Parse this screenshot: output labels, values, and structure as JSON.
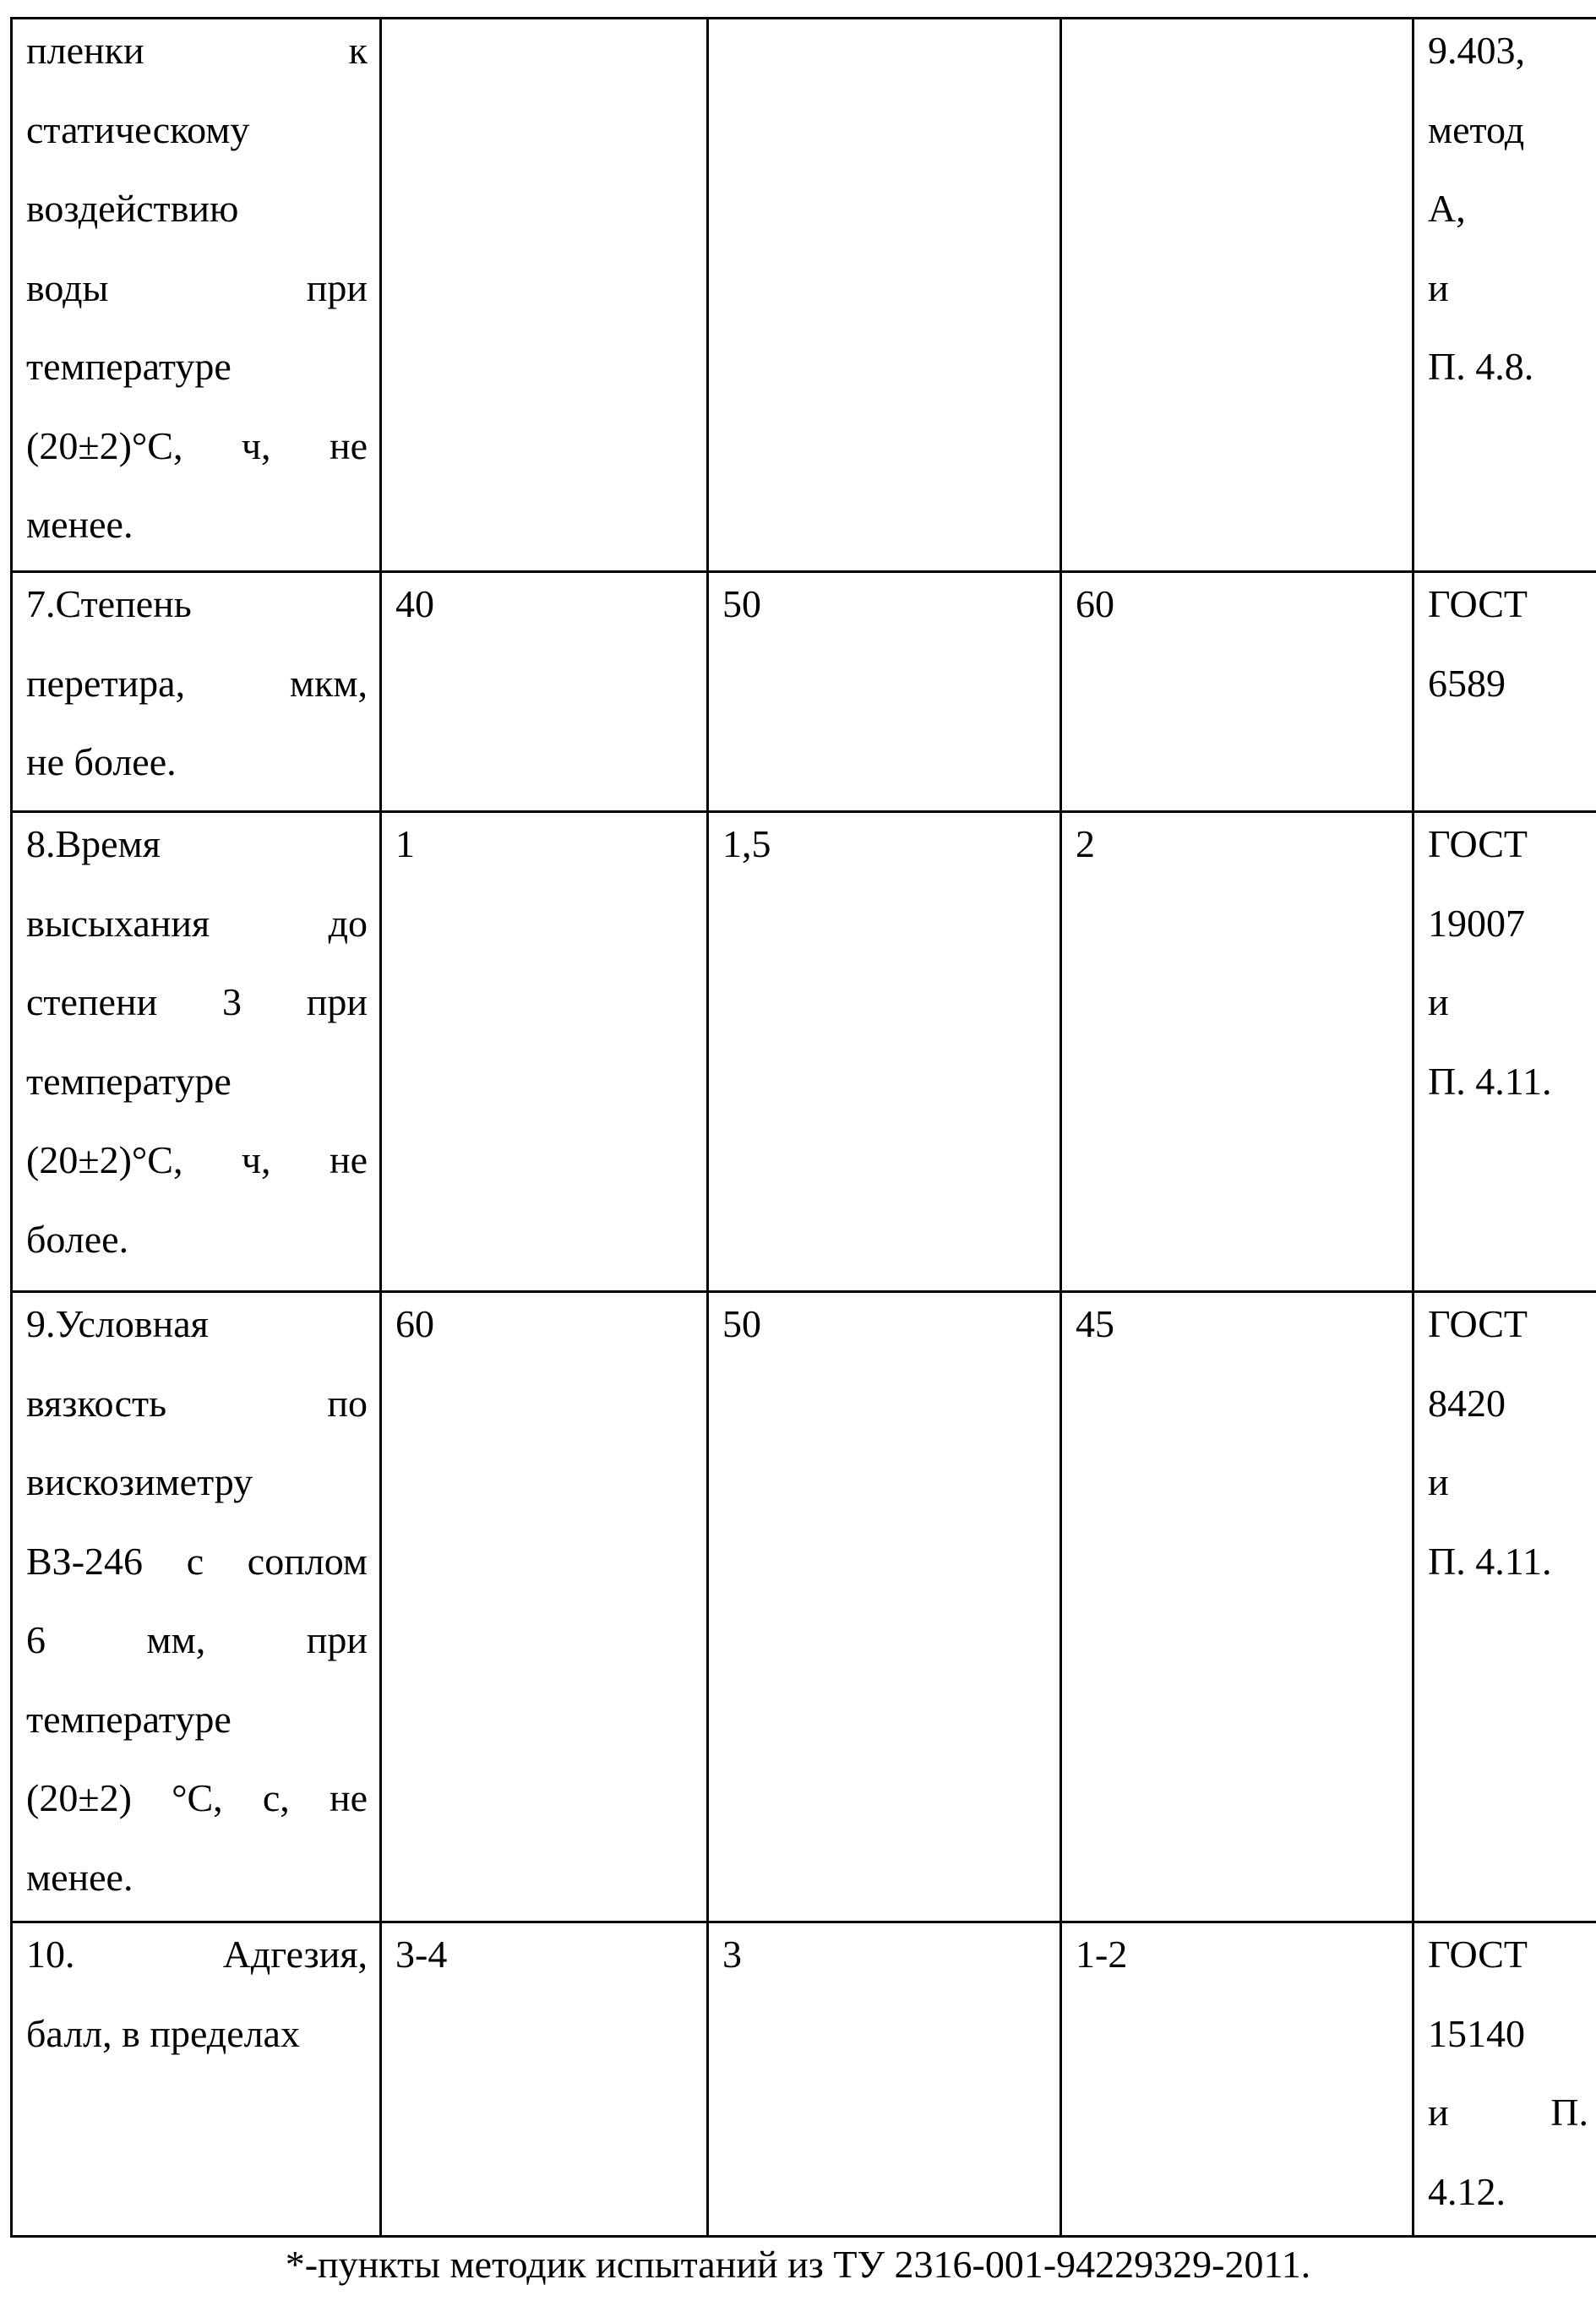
{
  "table": {
    "rows": [
      {
        "cells": [
          {
            "lines": [
              {
                "t": "пленки к",
                "j": true
              },
              {
                "t": "статическому",
                "j": false
              },
              {
                "t": "воздействию",
                "j": false
              },
              {
                "t": "воды при",
                "j": true
              },
              {
                "t": "температуре",
                "j": false
              },
              {
                "t": "(20±2)°С, ч, не",
                "j": true
              },
              {
                "t": "менее.",
                "j": false
              }
            ]
          },
          {
            "lines": []
          },
          {
            "lines": []
          },
          {
            "lines": []
          },
          {
            "lines": [
              {
                "t": "9.403,",
                "j": false
              },
              {
                "t": "метод",
                "j": false
              },
              {
                "t": "А,",
                "j": false
              },
              {
                "t": "и",
                "j": false
              },
              {
                "t": "П. 4.8.",
                "j": false
              }
            ]
          }
        ]
      },
      {
        "cells": [
          {
            "lines": [
              {
                "t": "7.Степень",
                "j": false
              },
              {
                "t": "перетира, мкм,",
                "j": true
              },
              {
                "t": "не более.",
                "j": false
              }
            ]
          },
          {
            "lines": [
              {
                "t": "40",
                "j": false
              }
            ]
          },
          {
            "lines": [
              {
                "t": "50",
                "j": false
              }
            ]
          },
          {
            "lines": [
              {
                "t": "60",
                "j": false
              }
            ]
          },
          {
            "lines": [
              {
                "t": "ГОСТ",
                "j": false
              },
              {
                "t": "6589",
                "j": false
              }
            ]
          }
        ]
      },
      {
        "cells": [
          {
            "lines": [
              {
                "t": "8.Время",
                "j": false
              },
              {
                "t": "высыхания до",
                "j": true
              },
              {
                "t": "степени 3 при",
                "j": true
              },
              {
                "t": "температуре",
                "j": false
              },
              {
                "t": "(20±2)°С, ч, не",
                "j": true
              },
              {
                "t": "более.",
                "j": false
              }
            ]
          },
          {
            "lines": [
              {
                "t": "1",
                "j": false
              }
            ]
          },
          {
            "lines": [
              {
                "t": "1,5",
                "j": false
              }
            ]
          },
          {
            "lines": [
              {
                "t": "2",
                "j": false
              }
            ]
          },
          {
            "lines": [
              {
                "t": "ГОСТ",
                "j": false
              },
              {
                "t": "19007",
                "j": false
              },
              {
                "t": "и",
                "j": false
              },
              {
                "t": "П. 4.11.",
                "j": false
              }
            ]
          }
        ]
      },
      {
        "cells": [
          {
            "lines": [
              {
                "t": "9.Условная",
                "j": false
              },
              {
                "t": "вязкость по",
                "j": true
              },
              {
                "t": "вискозиметру",
                "j": false
              },
              {
                "t": "ВЗ-246 с соплом",
                "j": true
              },
              {
                "t": "6 мм, при",
                "j": true
              },
              {
                "t": "температуре",
                "j": false
              },
              {
                "t": "(20±2) °С, с, не",
                "j": true
              },
              {
                "t": "менее.",
                "j": false
              }
            ]
          },
          {
            "lines": [
              {
                "t": "60",
                "j": false
              }
            ]
          },
          {
            "lines": [
              {
                "t": "50",
                "j": false
              }
            ]
          },
          {
            "lines": [
              {
                "t": "45",
                "j": false
              }
            ]
          },
          {
            "lines": [
              {
                "t": "ГОСТ",
                "j": false
              },
              {
                "t": "8420",
                "j": false
              },
              {
                "t": "и",
                "j": false
              },
              {
                "t": "П. 4.11.",
                "j": false
              }
            ]
          }
        ]
      },
      {
        "cells": [
          {
            "lines": [
              {
                "t": "10. Адгезия,",
                "j": true
              },
              {
                "t": "балл, в пределах",
                "j": false
              }
            ]
          },
          {
            "lines": [
              {
                "t": "3-4",
                "j": false
              }
            ]
          },
          {
            "lines": [
              {
                "t": "3",
                "j": false
              }
            ]
          },
          {
            "lines": [
              {
                "t": "1-2",
                "j": false
              }
            ]
          },
          {
            "lines": [
              {
                "t": "ГОСТ",
                "j": false
              },
              {
                "t": "15140",
                "j": false
              },
              {
                "t": "и П.",
                "j": true
              },
              {
                "t": "4.12.",
                "j": false
              }
            ]
          }
        ]
      }
    ]
  },
  "footnote": "*-пункты методик испытаний из ТУ 2316-001-94229329-2011."
}
